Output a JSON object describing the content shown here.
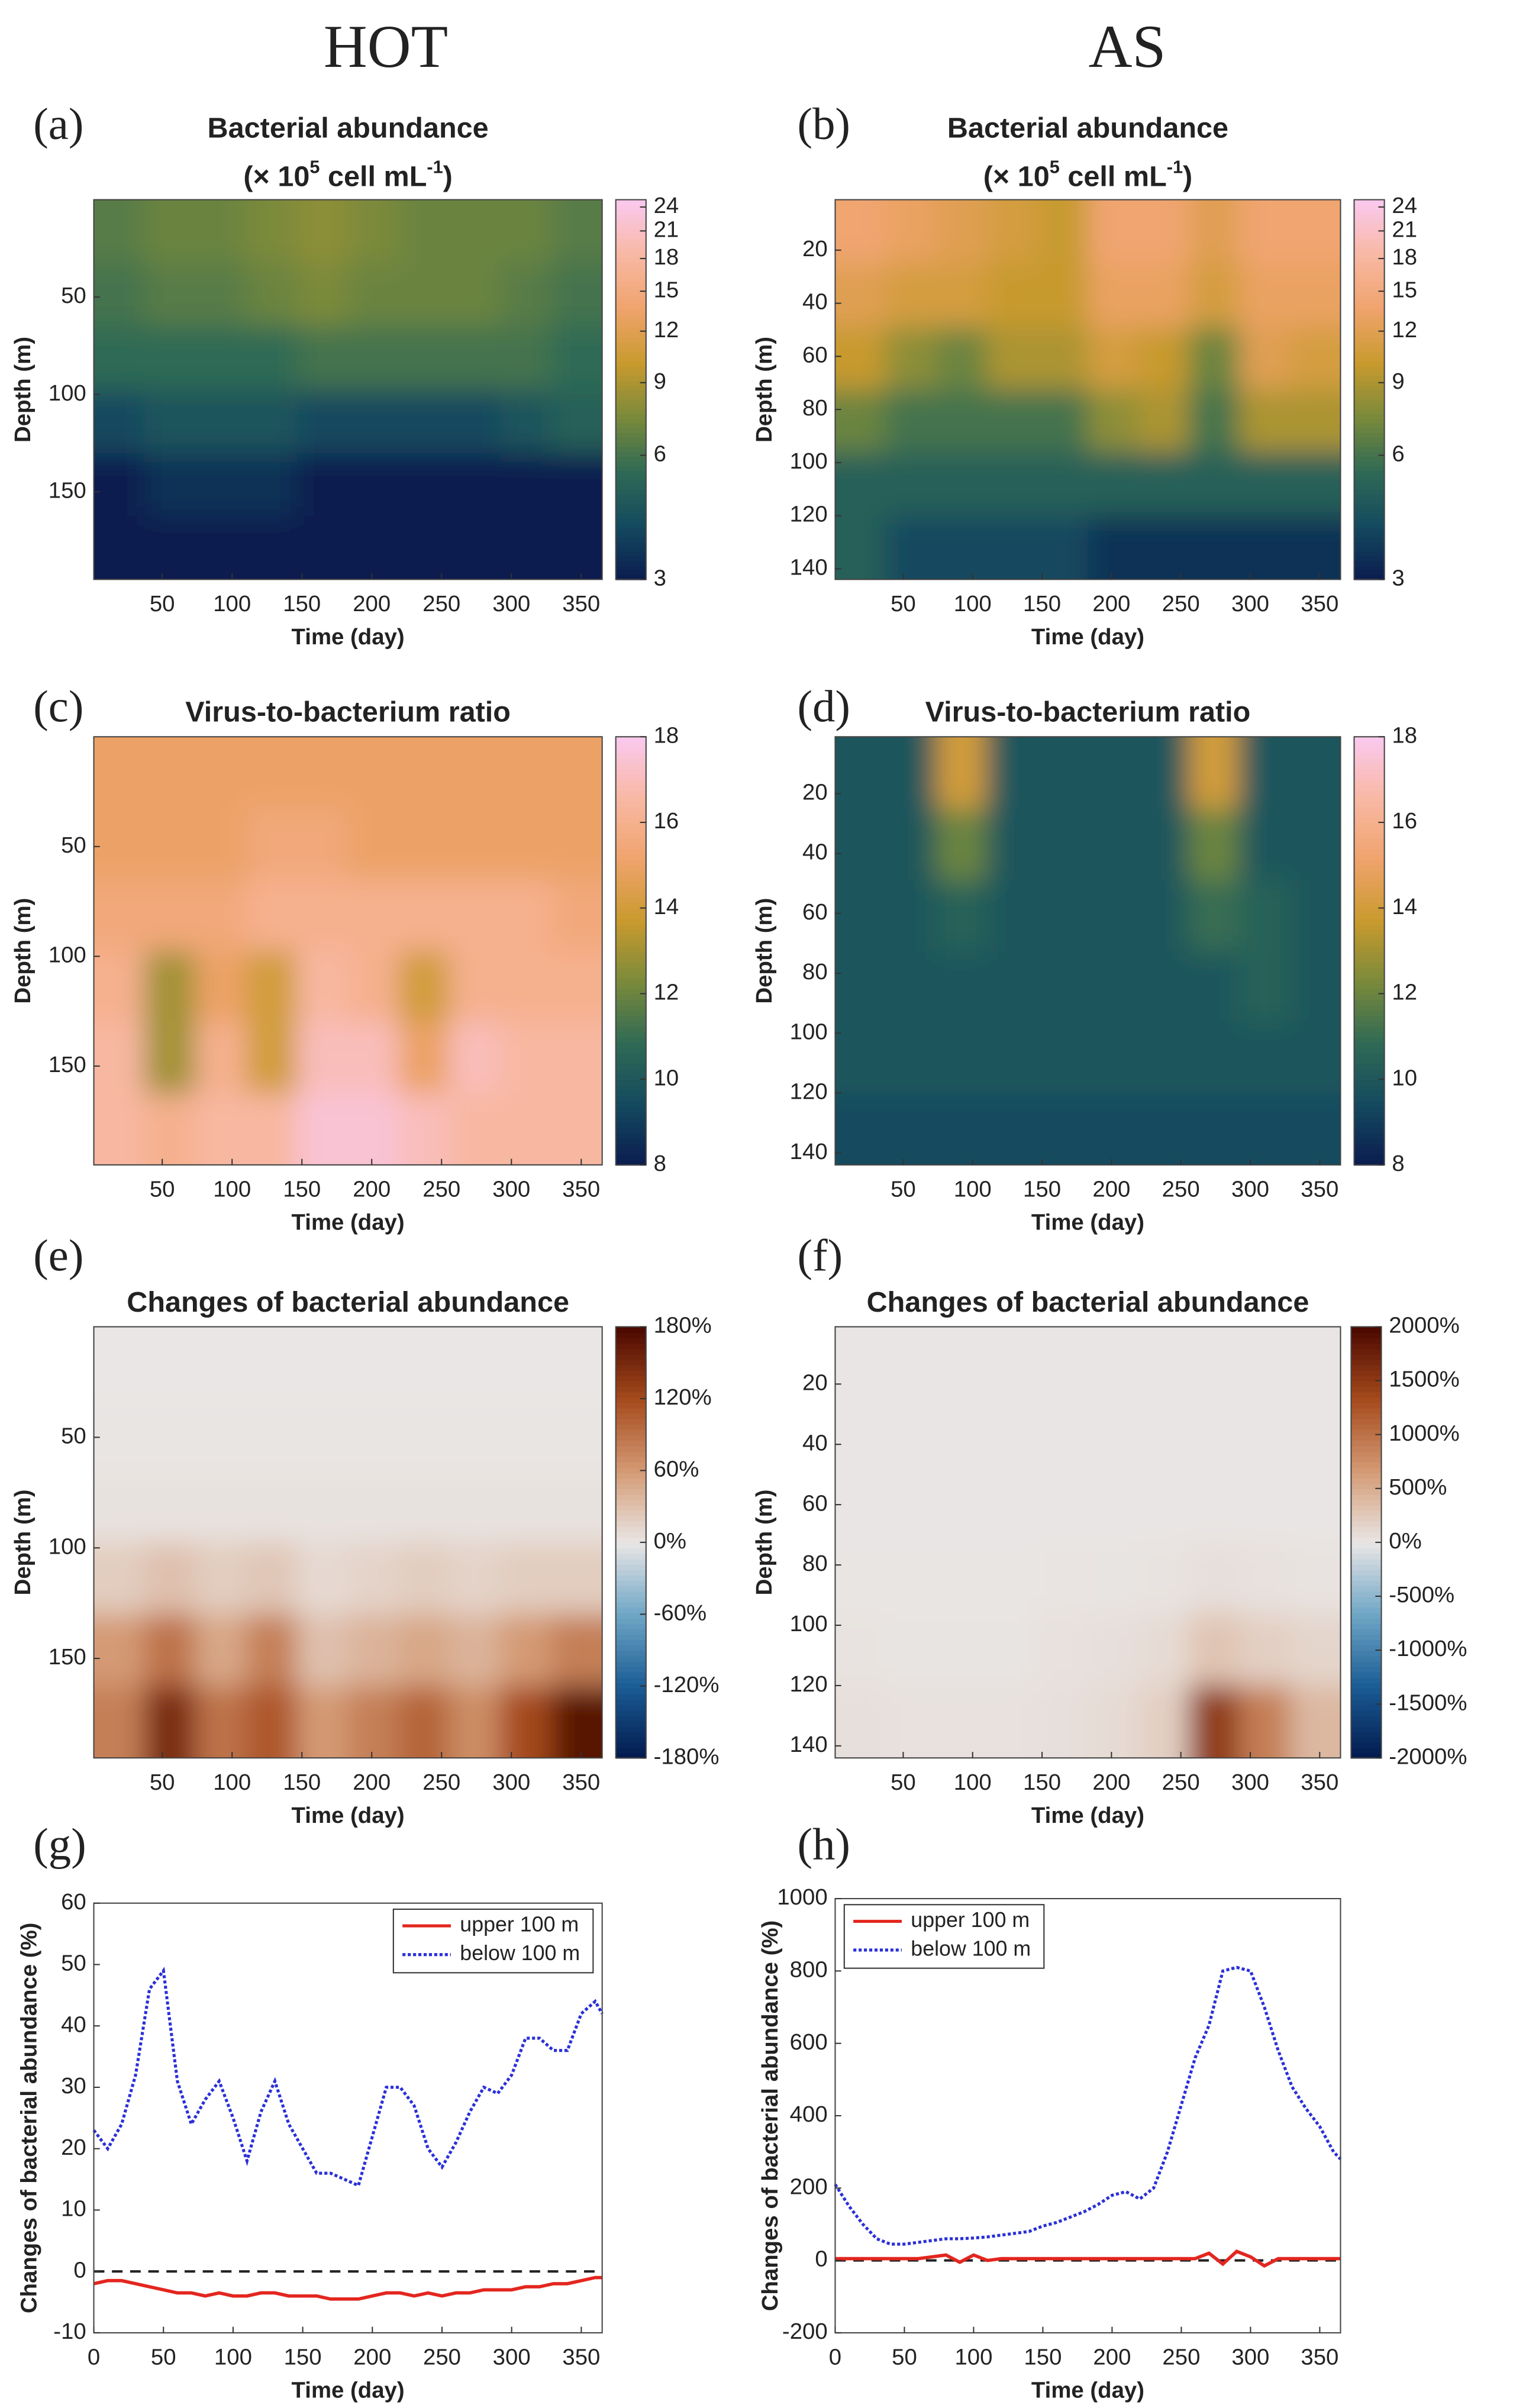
{
  "column_titles": [
    "HOT",
    "AS"
  ],
  "chart_data": [
    {
      "type": "heatmap",
      "panel_label": "(a)",
      "title": "Bacterial abundance",
      "title_line2": [
        "(× 10",
        "5",
        " cell mL",
        "-1",
        ")"
      ],
      "xlabel": "Time (day)",
      "ylabel": "Depth (m)",
      "xlim": [
        1,
        365
      ],
      "xticks": [
        50,
        100,
        150,
        200,
        250,
        300,
        350
      ],
      "ylim": [
        0,
        195
      ],
      "yticks": [
        50,
        100,
        150
      ],
      "clim": [
        3,
        25
      ],
      "color_scale": "log",
      "cticks": [
        3,
        6,
        9,
        12,
        15,
        18,
        21,
        24
      ],
      "colormap": [
        "#0b1c4f",
        "#144a5f",
        "#2f6a55",
        "#7a8a3a",
        "#c99a2e",
        "#f0a36c",
        "#f8b8a4",
        "#fac9ee"
      ],
      "x": [
        19,
        55,
        92,
        128,
        165,
        201,
        237,
        274,
        310,
        347
      ],
      "y": [
        16,
        49,
        81,
        114,
        146,
        179
      ],
      "z": [
        [
          6.5,
          7,
          7,
          7.5,
          8,
          7.5,
          7,
          7,
          7,
          6.5
        ],
        [
          6,
          6.5,
          6.5,
          7,
          7.5,
          7,
          7,
          7,
          6.5,
          6
        ],
        [
          5.5,
          5.5,
          5.5,
          5.5,
          6,
          6,
          6,
          6,
          6,
          5.5
        ],
        [
          4,
          4.5,
          4.5,
          4.5,
          4,
          4,
          4,
          4,
          4.5,
          5
        ],
        [
          3,
          3.5,
          3.5,
          3.5,
          3,
          3,
          3,
          3,
          3,
          3
        ],
        [
          3,
          3,
          3,
          3,
          3,
          3,
          3,
          3,
          3,
          3
        ]
      ]
    },
    {
      "type": "heatmap",
      "panel_label": "(b)",
      "title": "Bacterial abundance",
      "title_line2": [
        "(× 10",
        "5",
        " cell mL",
        "-1",
        ")"
      ],
      "xlabel": "Time (day)",
      "ylabel": "Depth (m)",
      "xlim": [
        1,
        365
      ],
      "xticks": [
        50,
        100,
        150,
        200,
        250,
        300,
        350
      ],
      "ylim": [
        1,
        144
      ],
      "yticks": [
        20,
        40,
        60,
        80,
        100,
        120,
        140
      ],
      "clim": [
        3,
        25
      ],
      "color_scale": "log",
      "cticks": [
        3,
        6,
        9,
        12,
        15,
        18,
        21,
        24
      ],
      "colormap": [
        "#0b1c4f",
        "#144a5f",
        "#2f6a55",
        "#7a8a3a",
        "#c99a2e",
        "#f0a36c",
        "#f8b8a4",
        "#fac9ee"
      ],
      "x": [
        19,
        55,
        92,
        128,
        165,
        201,
        237,
        274,
        310,
        347
      ],
      "y": [
        13,
        37,
        61,
        84,
        108,
        132
      ],
      "z": [
        [
          14,
          13,
          12,
          11,
          10,
          14,
          14,
          12,
          14,
          14
        ],
        [
          12,
          11,
          11,
          10,
          10,
          13,
          13,
          11,
          13,
          13
        ],
        [
          10,
          8,
          7,
          9,
          9,
          11,
          10,
          7,
          12,
          11
        ],
        [
          7,
          6,
          6,
          6,
          6,
          8,
          9,
          6,
          9,
          9
        ],
        [
          5,
          5,
          5,
          5,
          5,
          5,
          5,
          5,
          5,
          5
        ],
        [
          5,
          4,
          4,
          4,
          4,
          3.5,
          3.5,
          3.5,
          3.5,
          3.5
        ]
      ]
    },
    {
      "type": "heatmap",
      "panel_label": "(c)",
      "title": "Virus-to-bacterium ratio",
      "xlabel": "Time (day)",
      "ylabel": "Depth (m)",
      "xlim": [
        1,
        365
      ],
      "xticks": [
        50,
        100,
        150,
        200,
        250,
        300,
        350
      ],
      "ylim": [
        0,
        195
      ],
      "yticks": [
        50,
        100,
        150
      ],
      "clim": [
        8,
        18
      ],
      "cticks": [
        8,
        10,
        12,
        14,
        16,
        18
      ],
      "colormap": [
        "#0b1c4f",
        "#144a5f",
        "#2f6a55",
        "#7a8a3a",
        "#c99a2e",
        "#f0a36c",
        "#f8b8a4",
        "#fac9ee"
      ],
      "x": [
        19,
        55,
        92,
        128,
        165,
        201,
        237,
        274,
        310,
        347
      ],
      "y": [
        16,
        49,
        81,
        114,
        146,
        179
      ],
      "z": [
        [
          15,
          15,
          15,
          15,
          15,
          15,
          15,
          15,
          15,
          15
        ],
        [
          15,
          15,
          15,
          15.5,
          15.5,
          15,
          15,
          15,
          15,
          15
        ],
        [
          15.5,
          15.5,
          15.5,
          16,
          16,
          16,
          16,
          16,
          16,
          15.5
        ],
        [
          16,
          13,
          15,
          14,
          16.5,
          16,
          14,
          16,
          16,
          16
        ],
        [
          16.5,
          13,
          16,
          14,
          17,
          17,
          15,
          17,
          16.5,
          16.5
        ],
        [
          16.5,
          16,
          16.5,
          16.5,
          17.5,
          17.5,
          17,
          16.5,
          16.5,
          16.5
        ]
      ]
    },
    {
      "type": "heatmap",
      "panel_label": "(d)",
      "title": "Virus-to-bacterium ratio",
      "xlabel": "Time (day)",
      "ylabel": "Depth (m)",
      "xlim": [
        1,
        365
      ],
      "xticks": [
        50,
        100,
        150,
        200,
        250,
        300,
        350
      ],
      "ylim": [
        1,
        144
      ],
      "yticks": [
        20,
        40,
        60,
        80,
        100,
        120,
        140
      ],
      "clim": [
        8,
        18
      ],
      "cticks": [
        8,
        10,
        12,
        14,
        16,
        18
      ],
      "colormap": [
        "#0b1c4f",
        "#144a5f",
        "#2f6a55",
        "#7a8a3a",
        "#c99a2e",
        "#f0a36c",
        "#f8b8a4",
        "#fac9ee"
      ],
      "x": [
        19,
        55,
        92,
        128,
        165,
        201,
        237,
        274,
        310,
        347
      ],
      "y": [
        13,
        37,
        61,
        84,
        108,
        132
      ],
      "z": [
        [
          10,
          10,
          14,
          10,
          10,
          10,
          10,
          14,
          10,
          10
        ],
        [
          10,
          10,
          12,
          10,
          10,
          10,
          10,
          12,
          10,
          10
        ],
        [
          10,
          10,
          10.5,
          10,
          10,
          10,
          10,
          11,
          10.5,
          10
        ],
        [
          10,
          10,
          10,
          10,
          10,
          10,
          10,
          10,
          10.5,
          10
        ],
        [
          10,
          10,
          10,
          10,
          10,
          10,
          10,
          10,
          10,
          10
        ],
        [
          9.5,
          9.5,
          9.5,
          9.5,
          9.5,
          9.5,
          9.5,
          9.5,
          9.5,
          9.5
        ]
      ]
    },
    {
      "type": "heatmap",
      "panel_label": "(e)",
      "title": "Changes of bacterial abundance",
      "xlabel": "Time (day)",
      "ylabel": "Depth (m)",
      "xlim": [
        1,
        365
      ],
      "xticks": [
        50,
        100,
        150,
        200,
        250,
        300,
        350
      ],
      "ylim": [
        0,
        195
      ],
      "yticks": [
        50,
        100,
        150
      ],
      "clim": [
        -180,
        180
      ],
      "cticks": [
        {
          "value": -180,
          "label": "-180%"
        },
        {
          "value": -120,
          "label": "-120%"
        },
        {
          "value": -60,
          "label": "-60%"
        },
        {
          "value": 0,
          "label": "0%"
        },
        {
          "value": 60,
          "label": "60%"
        },
        {
          "value": 120,
          "label": "120%"
        },
        {
          "value": 180,
          "label": "180%"
        }
      ],
      "colormap": [
        "#021a4e",
        "#1a5c94",
        "#6fa6c6",
        "#e9e6e5",
        "#d49a74",
        "#a54a1c",
        "#4a0800"
      ],
      "x": [
        19,
        55,
        92,
        128,
        165,
        201,
        237,
        274,
        310,
        347
      ],
      "y": [
        16,
        49,
        81,
        114,
        146,
        179
      ],
      "z": [
        [
          0,
          0,
          0,
          0,
          0,
          0,
          0,
          0,
          0,
          0
        ],
        [
          1,
          1,
          1,
          1,
          1,
          1,
          1,
          1,
          1,
          1
        ],
        [
          3,
          3,
          3,
          3,
          3,
          3,
          3,
          3,
          3,
          3
        ],
        [
          20,
          30,
          20,
          25,
          10,
          15,
          20,
          15,
          20,
          20
        ],
        [
          60,
          90,
          50,
          80,
          30,
          40,
          50,
          40,
          60,
          80
        ],
        [
          80,
          150,
          90,
          110,
          60,
          80,
          100,
          70,
          120,
          170
        ]
      ]
    },
    {
      "type": "heatmap",
      "panel_label": "(f)",
      "title": "Changes of bacterial abundance",
      "xlabel": "Time (day)",
      "ylabel": "Depth (m)",
      "xlim": [
        1,
        365
      ],
      "xticks": [
        50,
        100,
        150,
        200,
        250,
        300,
        350
      ],
      "ylim": [
        1,
        144
      ],
      "yticks": [
        20,
        40,
        60,
        80,
        100,
        120,
        140
      ],
      "clim": [
        -2000,
        2000
      ],
      "cticks": [
        {
          "value": -2000,
          "label": "-2000%"
        },
        {
          "value": -1500,
          "label": "-1500%"
        },
        {
          "value": -1000,
          "label": "-1000%"
        },
        {
          "value": -500,
          "label": "-500%"
        },
        {
          "value": 0,
          "label": "0%"
        },
        {
          "value": 500,
          "label": "500%"
        },
        {
          "value": 1000,
          "label": "1000%"
        },
        {
          "value": 1500,
          "label": "1500%"
        },
        {
          "value": 2000,
          "label": "2000%"
        }
      ],
      "colormap": [
        "#021a4e",
        "#1a5c94",
        "#6fa6c6",
        "#e9e6e5",
        "#d49a74",
        "#a54a1c",
        "#4a0800"
      ],
      "x": [
        19,
        55,
        92,
        128,
        165,
        201,
        237,
        274,
        310,
        347
      ],
      "y": [
        13,
        37,
        61,
        84,
        108,
        132
      ],
      "z": [
        [
          5,
          5,
          5,
          5,
          5,
          5,
          5,
          5,
          5,
          5
        ],
        [
          5,
          5,
          5,
          5,
          5,
          5,
          5,
          5,
          5,
          5
        ],
        [
          5,
          5,
          5,
          5,
          5,
          5,
          5,
          5,
          5,
          5
        ],
        [
          10,
          10,
          10,
          10,
          15,
          20,
          30,
          60,
          40,
          30
        ],
        [
          30,
          20,
          20,
          20,
          40,
          60,
          100,
          300,
          200,
          150
        ],
        [
          60,
          40,
          40,
          40,
          60,
          100,
          200,
          1500,
          900,
          400
        ]
      ]
    },
    {
      "type": "line",
      "panel_label": "(g)",
      "xlabel": "Time (day)",
      "ylabel": "Changes of bacterial abundance (%)",
      "xlim": [
        0,
        365
      ],
      "xticks": [
        0,
        50,
        100,
        150,
        200,
        250,
        300,
        350
      ],
      "ylim": [
        -10,
        60
      ],
      "yticks": [
        -10,
        0,
        10,
        20,
        30,
        40,
        50,
        60
      ],
      "hline": 0,
      "legend": "upper right",
      "x": [
        0,
        10,
        20,
        30,
        40,
        50,
        60,
        70,
        80,
        90,
        100,
        110,
        120,
        130,
        140,
        150,
        160,
        170,
        180,
        190,
        200,
        210,
        220,
        230,
        240,
        250,
        260,
        270,
        280,
        290,
        300,
        310,
        320,
        330,
        340,
        350,
        360,
        365
      ],
      "series": [
        {
          "name": "upper 100 m",
          "color": "#e3261f",
          "dash": "solid",
          "values": [
            -2,
            -1.5,
            -1.5,
            -2,
            -2.5,
            -3,
            -3.5,
            -3.5,
            -4,
            -3.5,
            -4,
            -4,
            -3.5,
            -3.5,
            -4,
            -4,
            -4,
            -4.5,
            -4.5,
            -4.5,
            -4,
            -3.5,
            -3.5,
            -4,
            -3.5,
            -4,
            -3.5,
            -3.5,
            -3,
            -3,
            -3,
            -2.5,
            -2.5,
            -2,
            -2,
            -1.5,
            -1,
            -1
          ]
        },
        {
          "name": "below 100 m",
          "color": "#2a2fd8",
          "dash": "dotted",
          "values": [
            23,
            20,
            24,
            32,
            46,
            49,
            31,
            24,
            28,
            31,
            25,
            18,
            26,
            31,
            24,
            20,
            16,
            16,
            15,
            14,
            22,
            30,
            30,
            27,
            20,
            17,
            21,
            26,
            30,
            29,
            32,
            38,
            38,
            36,
            36,
            42,
            44,
            42
          ]
        }
      ]
    },
    {
      "type": "line",
      "panel_label": "(h)",
      "xlabel": "Time (day)",
      "ylabel": "Changes of bacterial abundance (%)",
      "xlim": [
        0,
        365
      ],
      "xticks": [
        0,
        50,
        100,
        150,
        200,
        250,
        300,
        350
      ],
      "ylim": [
        -200,
        1000
      ],
      "yticks": [
        -200,
        0,
        200,
        400,
        600,
        800,
        1000
      ],
      "hline": 0,
      "legend": "upper left",
      "x": [
        0,
        10,
        20,
        30,
        40,
        50,
        60,
        70,
        80,
        90,
        100,
        110,
        120,
        130,
        140,
        150,
        160,
        170,
        180,
        190,
        200,
        210,
        220,
        230,
        240,
        250,
        260,
        270,
        280,
        290,
        300,
        310,
        320,
        330,
        340,
        350,
        360,
        365
      ],
      "series": [
        {
          "name": "upper 100 m",
          "color": "#e3261f",
          "dash": "solid",
          "values": [
            5,
            5,
            5,
            5,
            5,
            5,
            5,
            10,
            15,
            -5,
            15,
            0,
            5,
            5,
            5,
            5,
            5,
            5,
            5,
            5,
            5,
            5,
            5,
            5,
            5,
            5,
            5,
            20,
            -10,
            25,
            10,
            -15,
            5,
            5,
            5,
            5,
            5,
            5
          ]
        },
        {
          "name": "below 100 m",
          "color": "#2a2fd8",
          "dash": "dotted",
          "values": [
            210,
            150,
            100,
            60,
            45,
            45,
            50,
            55,
            60,
            60,
            62,
            65,
            70,
            75,
            80,
            95,
            105,
            120,
            135,
            155,
            180,
            190,
            170,
            200,
            300,
            430,
            560,
            650,
            800,
            810,
            800,
            700,
            580,
            480,
            420,
            370,
            300,
            280
          ]
        }
      ]
    }
  ]
}
